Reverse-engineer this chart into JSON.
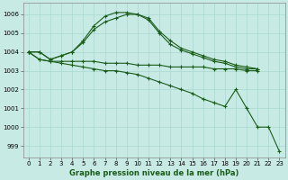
{
  "xlabel": "Graphe pression niveau de la mer (hPa)",
  "background_color": "#c8eae4",
  "grid_color": "#a8d8d0",
  "line_color": "#1a5c1a",
  "xlim": [
    -0.5,
    23.5
  ],
  "ylim": [
    998.4,
    1006.6
  ],
  "yticks": [
    999,
    1000,
    1001,
    1002,
    1003,
    1004,
    1005,
    1006
  ],
  "xticks": [
    0,
    1,
    2,
    3,
    4,
    5,
    6,
    7,
    8,
    9,
    10,
    11,
    12,
    13,
    14,
    15,
    16,
    17,
    18,
    19,
    20,
    21,
    22,
    23
  ],
  "series": [
    [
      1004.0,
      1004.0,
      1003.6,
      1003.8,
      1004.0,
      1004.5,
      1005.2,
      1005.6,
      1005.8,
      1006.0,
      1006.0,
      1005.8,
      1005.1,
      1004.6,
      1004.2,
      1004.0,
      1003.8,
      1003.6,
      1003.5,
      1003.3,
      1003.2,
      1003.1,
      null,
      null
    ],
    [
      1004.0,
      1004.0,
      1003.6,
      1003.8,
      1004.0,
      1004.6,
      1005.4,
      1005.9,
      1006.1,
      1006.1,
      1006.0,
      1005.7,
      1005.0,
      1004.4,
      1004.1,
      1003.9,
      1003.7,
      1003.5,
      1003.4,
      1003.2,
      1003.1,
      1003.1,
      null,
      null
    ],
    [
      1004.0,
      1003.6,
      1003.5,
      1003.5,
      1003.5,
      1003.5,
      1003.5,
      1003.4,
      1003.4,
      1003.4,
      1003.3,
      1003.3,
      1003.3,
      1003.2,
      1003.2,
      1003.2,
      1003.2,
      1003.1,
      1003.1,
      1003.1,
      1003.0,
      1003.0,
      null,
      null
    ],
    [
      1004.0,
      1003.6,
      1003.5,
      1003.4,
      1003.3,
      1003.2,
      1003.1,
      1003.0,
      1003.0,
      1002.9,
      1002.8,
      1002.6,
      1002.4,
      1002.2,
      1002.0,
      1001.8,
      1001.5,
      1001.3,
      1001.1,
      1002.0,
      1001.0,
      1000.0,
      1000.0,
      998.7
    ]
  ],
  "xlabel_fontsize": 6.0,
  "tick_fontsize": 5.0
}
